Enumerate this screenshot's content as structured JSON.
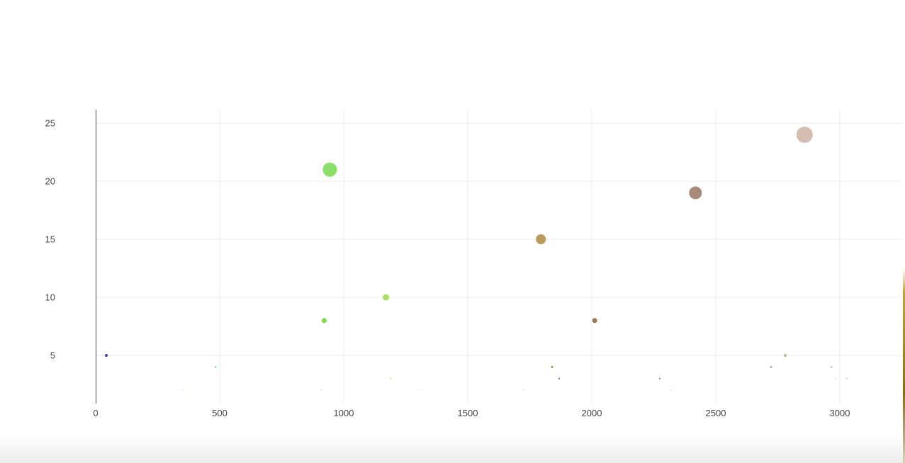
{
  "chart_data": {
    "type": "scatter",
    "title": "",
    "xlabel": "",
    "ylabel": "",
    "xlim": [
      0,
      3300
    ],
    "ylim": [
      1,
      26.2
    ],
    "grid": true,
    "legend": "none",
    "x_ticks": [
      0,
      500,
      1000,
      1500,
      2000,
      2500,
      3000
    ],
    "y_ticks": [
      5,
      10,
      15,
      20,
      25
    ],
    "points": [
      {
        "x": 43,
        "y": 5,
        "size": 4,
        "color": "#3f3fa8"
      },
      {
        "x": 352,
        "y": 2,
        "size": 1,
        "color": "#d8d86b"
      },
      {
        "x": 483,
        "y": 4,
        "size": 2,
        "color": "#4bb8c0"
      },
      {
        "x": 909,
        "y": 2,
        "size": 1,
        "color": "#b9e06b"
      },
      {
        "x": 921,
        "y": 8,
        "size": 7,
        "color": "#7fd94f"
      },
      {
        "x": 944,
        "y": 21,
        "size": 20,
        "color": "#8ae06a"
      },
      {
        "x": 1170,
        "y": 10,
        "size": 9,
        "color": "#a8e067"
      },
      {
        "x": 1190,
        "y": 3,
        "size": 2,
        "color": "#d1c74f"
      },
      {
        "x": 1292,
        "y": 2,
        "size": 1,
        "color": "#e8e0a8"
      },
      {
        "x": 1312,
        "y": 2,
        "size": 1,
        "color": "#e0e0c0"
      },
      {
        "x": 1725,
        "y": 2,
        "size": 1,
        "color": "#d6cf8a"
      },
      {
        "x": 1795,
        "y": 15,
        "size": 14,
        "color": "#b99c5a"
      },
      {
        "x": 1840,
        "y": 4,
        "size": 3,
        "color": "#9f8a3c"
      },
      {
        "x": 1869,
        "y": 3,
        "size": 2,
        "color": "#7a4f7f"
      },
      {
        "x": 2012,
        "y": 8,
        "size": 7,
        "color": "#a07853"
      },
      {
        "x": 2274,
        "y": 3,
        "size": 2,
        "color": "#7a5a8a"
      },
      {
        "x": 2318,
        "y": 2,
        "size": 1,
        "color": "#8fcf90"
      },
      {
        "x": 2418,
        "y": 19,
        "size": 18,
        "color": "#a88a7a"
      },
      {
        "x": 2723,
        "y": 4,
        "size": 3,
        "color": "#b0a0b8"
      },
      {
        "x": 2780,
        "y": 5,
        "size": 4,
        "color": "#b5c08a"
      },
      {
        "x": 2858,
        "y": 24,
        "size": 23,
        "color": "#d4beb2"
      },
      {
        "x": 2966,
        "y": 4,
        "size": 3,
        "color": "#c8c8d8"
      },
      {
        "x": 2984,
        "y": 3,
        "size": 2,
        "color": "#e0d8b0"
      },
      {
        "x": 3028,
        "y": 3,
        "size": 2,
        "color": "#d8c890"
      }
    ]
  }
}
